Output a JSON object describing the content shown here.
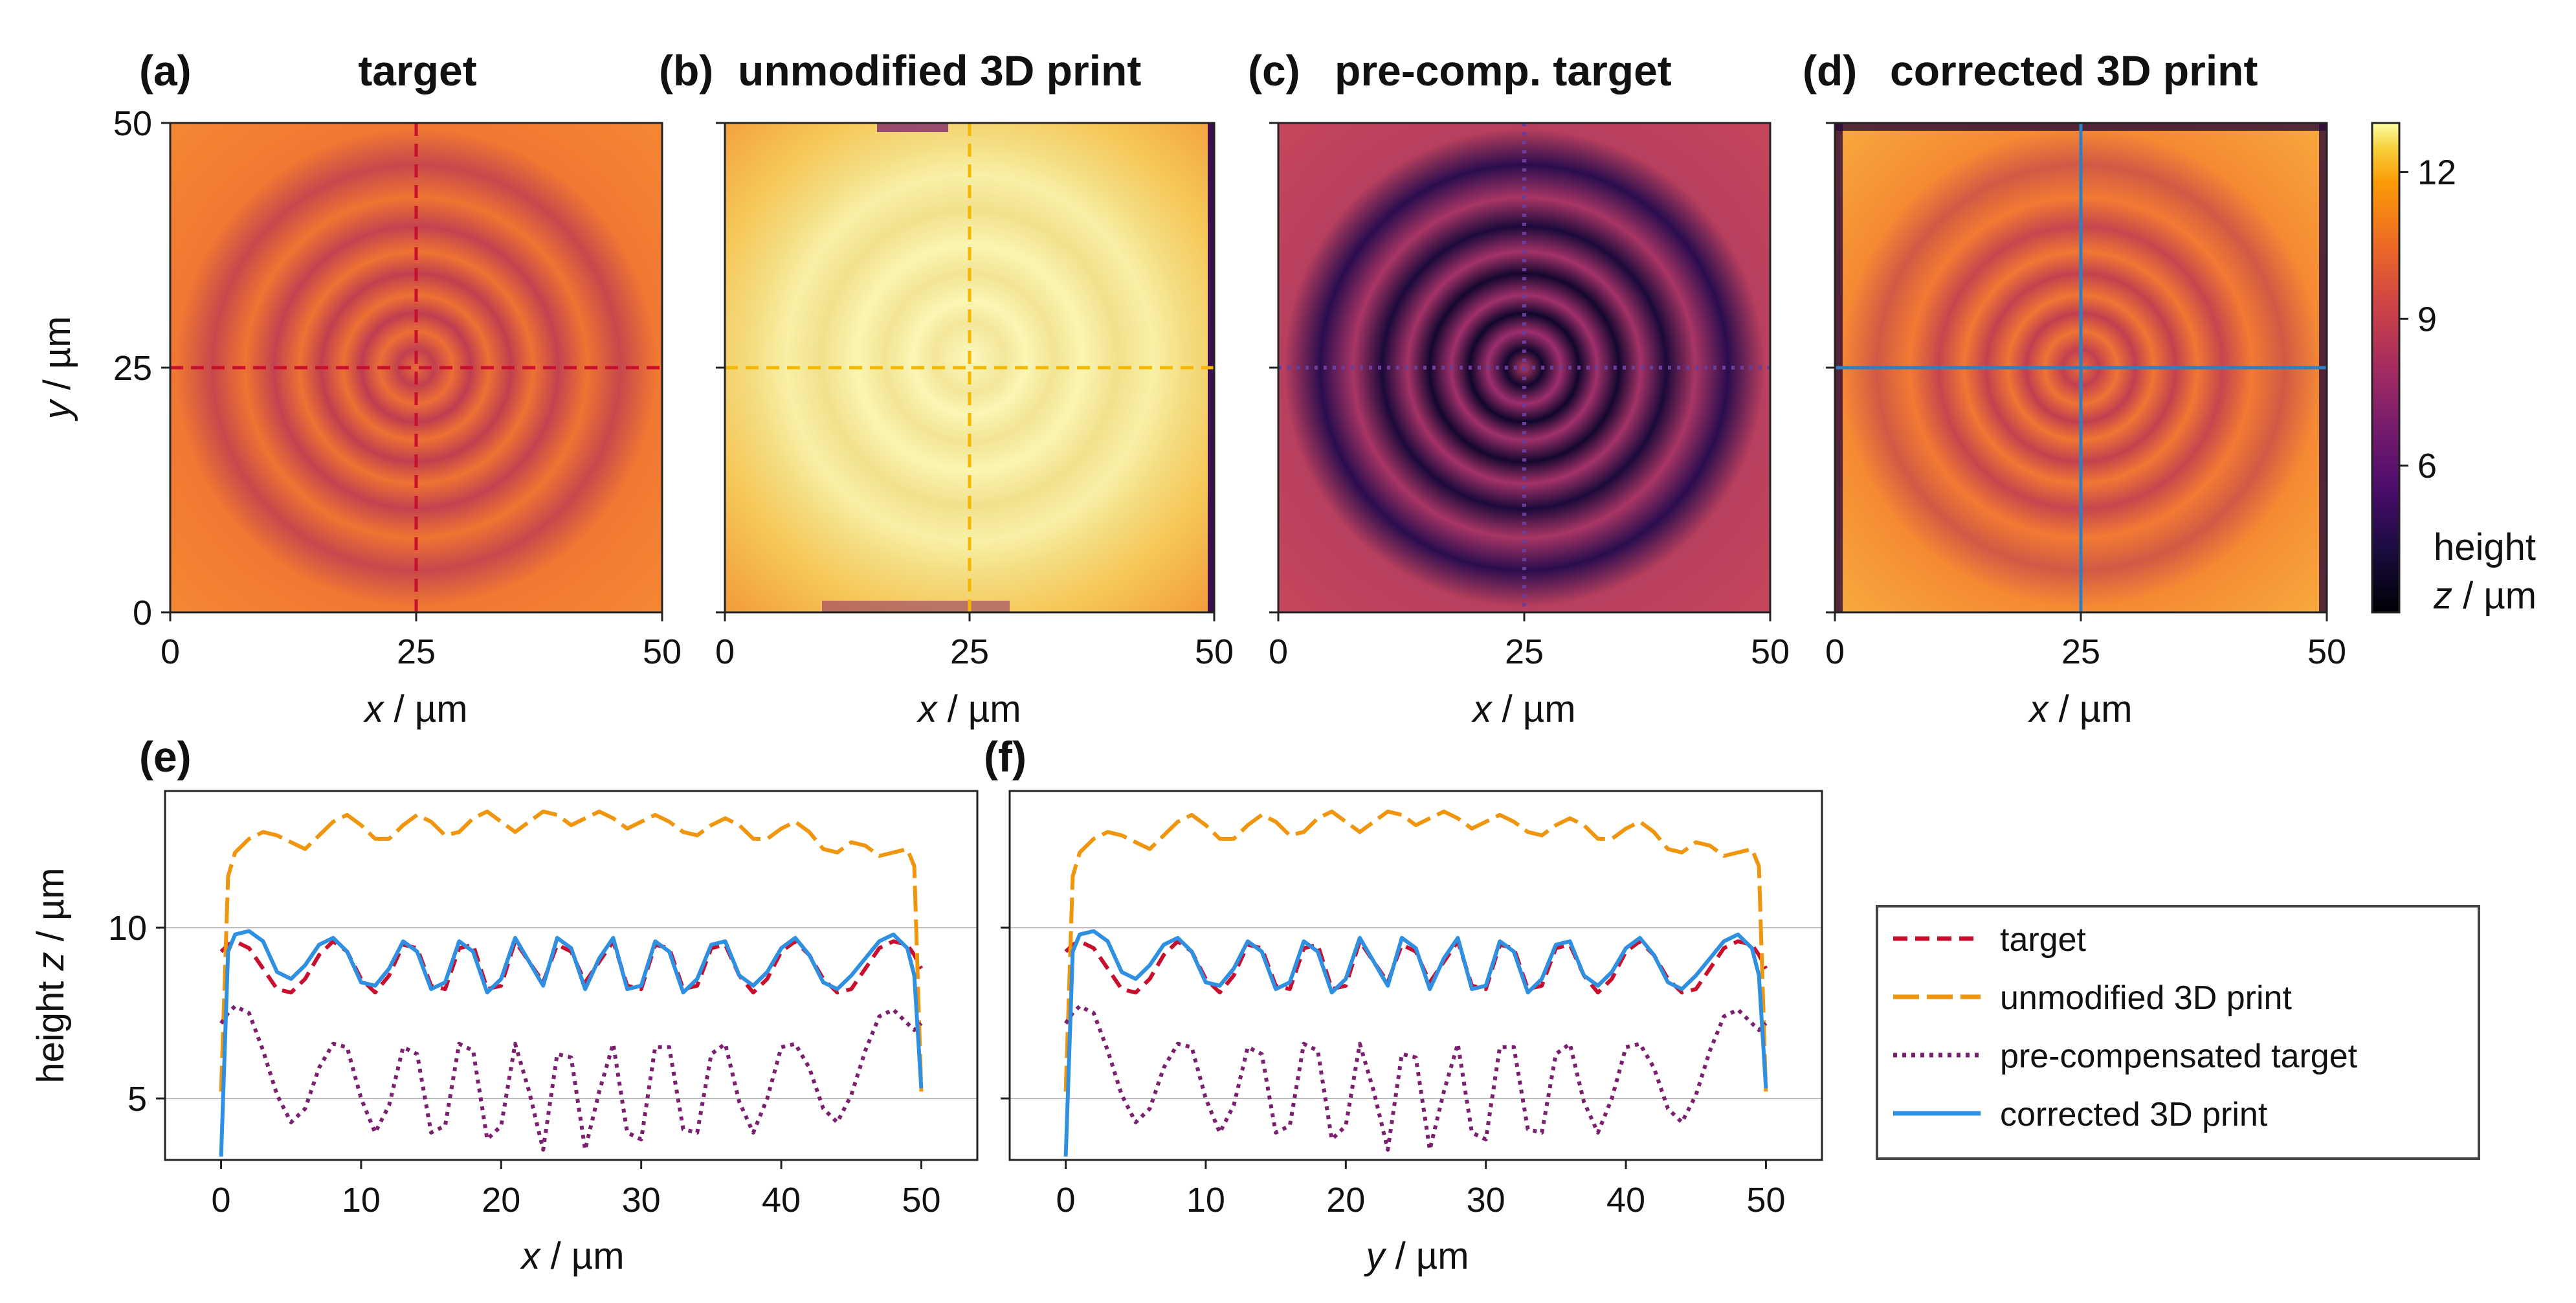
{
  "figure": {
    "heatmaps": [
      {
        "panel": "(a)",
        "title": "target",
        "style": "target",
        "guide_color": "#c8102e",
        "guide_dash": "dashed"
      },
      {
        "panel": "(b)",
        "title": "unmodified 3D print",
        "style": "unmodified",
        "guide_color": "#f5b800",
        "guide_dash": "dashed"
      },
      {
        "panel": "(c)",
        "title": "pre-comp. target",
        "style": "precomp",
        "guide_color": "#6a3d9a",
        "guide_dash": "dotted"
      },
      {
        "panel": "(d)",
        "title": "corrected 3D print",
        "style": "corrected",
        "guide_color": "#2f7fc1",
        "guide_dash": "solid"
      }
    ],
    "heatmap_axes": {
      "xlabel_var": "x",
      "ylabel_var": "y",
      "unit": " / µm",
      "ticks": [
        "0",
        "25",
        "50"
      ]
    },
    "colorbar": {
      "ticks": [
        {
          "value": 12,
          "label": "12"
        },
        {
          "value": 9,
          "label": "9"
        },
        {
          "value": 6,
          "label": "6"
        }
      ],
      "range": [
        3,
        13
      ],
      "label_line1": "height",
      "label_line2_var": "z",
      "label_line2_unit": " / µm",
      "colormap": "inferno"
    },
    "line_panels": [
      {
        "panel": "(e)",
        "xlabel_var": "x",
        "xlabel_unit": " / µm"
      },
      {
        "panel": "(f)",
        "xlabel_var": "y",
        "xlabel_unit": " / µm"
      }
    ],
    "line_ylabel_prefix": "height ",
    "line_ylabel_var": "z",
    "line_ylabel_unit": " / µm",
    "legend": [
      {
        "label": "target",
        "color": "#c8102e",
        "dash": "dashed"
      },
      {
        "label": "unmodified 3D print",
        "color": "#f0960e",
        "dash": "longdash"
      },
      {
        "label": "pre-compensated target",
        "color": "#7b1f6e",
        "dash": "dotted"
      },
      {
        "label": "corrected 3D print",
        "color": "#2f8fe0",
        "dash": "solid"
      }
    ]
  },
  "chart_data": {
    "type": "line",
    "x_ticks": [
      "0",
      "10",
      "20",
      "30",
      "40",
      "50"
    ],
    "y_ticks": [
      "5",
      "10"
    ],
    "xlim": [
      -4,
      54
    ],
    "ylim": [
      3.2,
      14
    ],
    "x": [
      0,
      0.5,
      1,
      2,
      3,
      4,
      5,
      6,
      7,
      8,
      9,
      10,
      11,
      12,
      13,
      14,
      15,
      16,
      17,
      18,
      19,
      20,
      21,
      22,
      23,
      24,
      25,
      26,
      27,
      28,
      29,
      30,
      31,
      32,
      33,
      34,
      35,
      36,
      37,
      38,
      39,
      40,
      41,
      42,
      43,
      44,
      45,
      46,
      47,
      48,
      49,
      49.5,
      50
    ],
    "series": [
      {
        "name": "target",
        "values": [
          9.3,
          9.5,
          9.6,
          9.4,
          8.8,
          8.2,
          8.1,
          8.5,
          9.2,
          9.6,
          9.3,
          8.5,
          8.1,
          8.6,
          9.5,
          9.4,
          8.3,
          8.2,
          9.4,
          9.5,
          8.2,
          8.3,
          9.6,
          9.0,
          8.4,
          9.5,
          9.3,
          8.4,
          9.0,
          9.6,
          8.3,
          8.2,
          9.5,
          9.4,
          8.2,
          8.3,
          9.4,
          9.5,
          8.6,
          8.1,
          8.5,
          9.3,
          9.6,
          9.2,
          8.5,
          8.1,
          8.2,
          8.8,
          9.4,
          9.6,
          9.5,
          9.2,
          8.8
        ]
      },
      {
        "name": "unmodified 3D print",
        "values": [
          5.2,
          11.5,
          12.2,
          12.6,
          12.8,
          12.7,
          12.5,
          12.3,
          12.7,
          13.1,
          13.3,
          13.0,
          12.6,
          12.6,
          13.0,
          13.3,
          13.1,
          12.7,
          12.8,
          13.2,
          13.4,
          13.1,
          12.8,
          13.1,
          13.4,
          13.3,
          13.0,
          13.2,
          13.4,
          13.2,
          12.9,
          13.1,
          13.3,
          13.1,
          12.8,
          12.7,
          13.0,
          13.2,
          13.0,
          12.6,
          12.6,
          12.9,
          13.1,
          12.8,
          12.3,
          12.2,
          12.5,
          12.4,
          12.1,
          12.2,
          12.3,
          11.8,
          5.2
        ]
      },
      {
        "name": "pre-compensated target",
        "values": [
          7.2,
          7.5,
          7.7,
          7.5,
          6.4,
          5.1,
          4.3,
          4.7,
          5.9,
          6.6,
          6.5,
          5.0,
          4.0,
          4.8,
          6.5,
          6.3,
          4.0,
          4.2,
          6.6,
          6.4,
          3.8,
          4.2,
          6.6,
          5.2,
          3.5,
          6.3,
          6.2,
          3.5,
          5.2,
          6.6,
          4.0,
          3.8,
          6.5,
          6.5,
          4.1,
          4.0,
          6.3,
          6.6,
          4.9,
          4.0,
          5.0,
          6.5,
          6.6,
          5.9,
          4.7,
          4.3,
          5.1,
          6.4,
          7.4,
          7.6,
          7.2,
          7.0,
          7.2
        ]
      },
      {
        "name": "corrected 3D print",
        "values": [
          3.3,
          9.3,
          9.8,
          9.9,
          9.6,
          8.7,
          8.5,
          8.9,
          9.5,
          9.7,
          9.3,
          8.4,
          8.3,
          8.8,
          9.6,
          9.3,
          8.2,
          8.4,
          9.6,
          9.3,
          8.1,
          8.5,
          9.7,
          9.0,
          8.3,
          9.7,
          9.4,
          8.2,
          9.1,
          9.7,
          8.2,
          8.3,
          9.6,
          9.3,
          8.1,
          8.5,
          9.5,
          9.6,
          8.6,
          8.3,
          8.7,
          9.4,
          9.7,
          9.2,
          8.4,
          8.2,
          8.6,
          9.1,
          9.6,
          9.8,
          9.4,
          8.6,
          5.3
        ]
      }
    ]
  }
}
